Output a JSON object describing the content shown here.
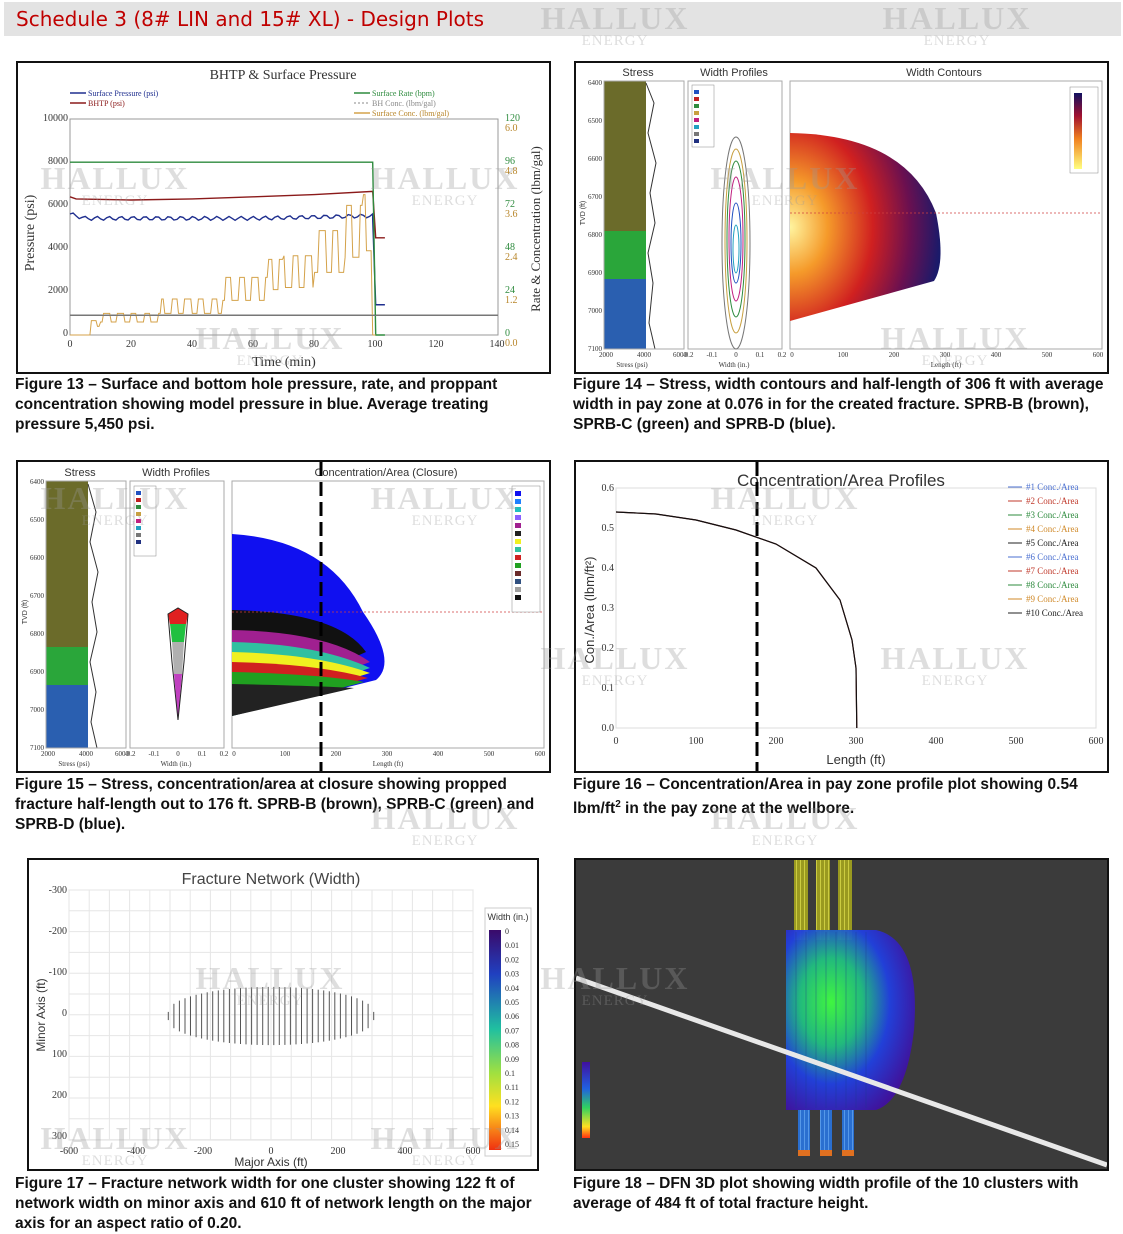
{
  "header": {
    "title": "Schedule 3 (8# LIN and 15# XL) - Design Plots"
  },
  "watermark": {
    "line1": "HALLUX",
    "line2": "ENERGY"
  },
  "fig13": {
    "title": "BHTP & Surface Pressure",
    "legend_left": [
      "Surface Pressure (psi)",
      "BHTP (psi)"
    ],
    "legend_right": [
      "Surface Rate (bpm)",
      "BH Conc. (lbm/gal)",
      "Surface Conc. (lbm/gal)"
    ],
    "ylabel_left": "Pressure (psi)",
    "ylabel_right": "Rate & Concentration (lbm/gal)",
    "xlabel": "Time (min)",
    "x_ticks": [
      "0",
      "20",
      "40",
      "60",
      "80",
      "100",
      "120",
      "140"
    ],
    "y_ticks": [
      "0",
      "2000",
      "4000",
      "6000",
      "8000",
      "10000"
    ],
    "rate_ticks": [
      "0",
      "24",
      "48",
      "72",
      "96",
      "120"
    ],
    "conc_ticks": [
      "0.0",
      "1.2",
      "2.4",
      "3.6",
      "4.8",
      "6.0"
    ],
    "caption": "Figure 13 – Surface and bottom hole pressure, rate, and proppant concentration showing model pressure in blue. Average treating pressure 5,450 psi."
  },
  "fig14": {
    "labels": {
      "stress": "Stress",
      "width_profiles": "Width Profiles",
      "width_contours": "Width Contours",
      "tvd": "TVD (ft)",
      "stress_axis": "Stress (psi)",
      "width_axis": "Width (in.)",
      "length_axis": "Length (ft)"
    },
    "depth_ticks": [
      "6400",
      "6500",
      "6600",
      "6700",
      "6800",
      "6900",
      "7000",
      "7100"
    ],
    "stress_ticks": [
      "2000",
      "4000",
      "6000"
    ],
    "width_ticks": [
      "-0.2",
      "-0.1",
      "0",
      "0.1",
      "0.2"
    ],
    "length_ticks": [
      "0",
      "100",
      "200",
      "300",
      "400",
      "500",
      "600"
    ],
    "caption": "Figure 14 – Stress, width contours and half-length of 306 ft with average width in pay zone at 0.076 in for the created fracture. SPRB-B (brown), SPRB-C (green) and SPRB-D (blue)."
  },
  "fig15": {
    "labels": {
      "stress": "Stress",
      "width_profiles": "Width Profiles",
      "conc_area": "Concentration/Area (Closure)",
      "tvd": "TVD (ft)",
      "stress_axis": "Stress (psi)",
      "width_axis": "Width (in.)",
      "length_axis": "Length (ft)"
    },
    "depth_ticks": [
      "6400",
      "6500",
      "6600",
      "6700",
      "6800",
      "6900",
      "7000",
      "7100"
    ],
    "stress_ticks": [
      "2000",
      "4000",
      "6000"
    ],
    "width_ticks": [
      "-0.2",
      "-0.1",
      "0",
      "0.1",
      "0.2"
    ],
    "length_ticks": [
      "0",
      "100",
      "200",
      "300",
      "400",
      "500",
      "600"
    ],
    "caption": "Figure 15 – Stress, concentration/area at closure showing propped fracture half-length out to 176 ft.  SPRB-B (brown), SPRB-C (green) and SPRB-D (blue)."
  },
  "fig16": {
    "title": "Concentration/Area Profiles",
    "ylabel": "Con./Area (lbm/ft²)",
    "xlabel": "Length (ft)",
    "legend": [
      "#1 Conc./Area",
      "#2 Conc./Area",
      "#3 Conc./Area",
      "#4 Conc./Area",
      "#5 Conc./Area",
      "#6 Conc./Area",
      "#7 Conc./Area",
      "#8 Conc./Area",
      "#9 Conc./Area",
      "#10 Conc./Area"
    ],
    "legend_colors": [
      "#4a6fd0",
      "#c0392b",
      "#2e8b3e",
      "#d08a2a",
      "#222222",
      "#4a6fd0",
      "#c0392b",
      "#2e8b3e",
      "#d08a2a",
      "#222222"
    ],
    "caption_main": "Figure 16 – Concentration/Area in pay zone profile plot showing 0.54 lbm/ft",
    "caption_sup": "2",
    "caption_tail": " in the pay zone at the wellbore."
  },
  "fig17": {
    "title": "Fracture Network (Width)",
    "ylabel": "Minor Axis (ft)",
    "xlabel": "Major Axis (ft)",
    "colorbar_title": "Width (in.)",
    "colorbar_labels": [
      "0",
      "0.01",
      "0.02",
      "0.03",
      "0.04",
      "0.05",
      "0.06",
      "0.07",
      "0.08",
      "0.09",
      "0.1",
      "0.11",
      "0.12",
      "0.13",
      "0.14",
      "0.15"
    ],
    "caption": "Figure 17 – Fracture network width for one cluster showing 122 ft of network width on minor axis and 610 ft of network length on the major axis for an aspect ratio of 0.20."
  },
  "fig18": {
    "caption": "Figure 18 – DFN 3D plot showing width profile of the 10 clusters with average of 484 ft of total fracture height."
  },
  "chart_data": [
    {
      "type": "line",
      "title": "BHTP & Surface Pressure",
      "xlabel": "Time (min)",
      "ylabel": "Pressure (psi)",
      "xlim": [
        0,
        140
      ],
      "ylim": [
        0,
        10000
      ],
      "y2lim_rate": [
        0,
        120
      ],
      "y2lim_conc": [
        0,
        6.0
      ],
      "series": [
        {
          "name": "Surface Pressure (psi)",
          "color": "#1f2f8f",
          "x": [
            0,
            2,
            10,
            30,
            50,
            70,
            95,
            99,
            100,
            103
          ],
          "y": [
            5800,
            5600,
            5500,
            5400,
            5300,
            5300,
            5400,
            5400,
            1400,
            1400
          ]
        },
        {
          "name": "BHTP (psi)",
          "color": "#8b1a1a",
          "x": [
            0,
            2,
            20,
            40,
            60,
            80,
            99,
            100,
            103
          ],
          "y": [
            6400,
            6300,
            6250,
            6300,
            6400,
            6500,
            6650,
            4500,
            4500
          ]
        },
        {
          "name": "Surface Rate (bpm)",
          "color": "#2e8b3e",
          "x": [
            0,
            99,
            100,
            103
          ],
          "y": [
            96,
            96,
            0,
            0
          ]
        },
        {
          "name": "Surface Conc. (lbm/gal)",
          "color": "#d4a24a",
          "x": [
            0,
            7,
            10,
            30,
            50,
            65,
            70,
            80,
            90,
            96,
            99,
            100
          ],
          "y": [
            0,
            0.4,
            0.6,
            1.0,
            1.6,
            2.1,
            2.2,
            2.9,
            3.6,
            3.9,
            0,
            0
          ]
        }
      ]
    },
    {
      "type": "line",
      "title": "Concentration/Area Profiles",
      "xlabel": "Length (ft)",
      "ylabel": "Con./Area (lbm/ft²)",
      "xlim": [
        0,
        600
      ],
      "ylim": [
        0,
        0.6
      ],
      "x": [
        0,
        50,
        100,
        150,
        200,
        250,
        280,
        295,
        300,
        301
      ],
      "series": [
        {
          "name": "#1 Conc./Area",
          "values": [
            0.54,
            0.535,
            0.52,
            0.495,
            0.46,
            0.4,
            0.32,
            0.22,
            0.15,
            0
          ]
        },
        {
          "name": "#10 Conc./Area",
          "values": [
            0.54,
            0.535,
            0.52,
            0.495,
            0.46,
            0.4,
            0.32,
            0.22,
            0.15,
            0
          ]
        }
      ]
    }
  ]
}
